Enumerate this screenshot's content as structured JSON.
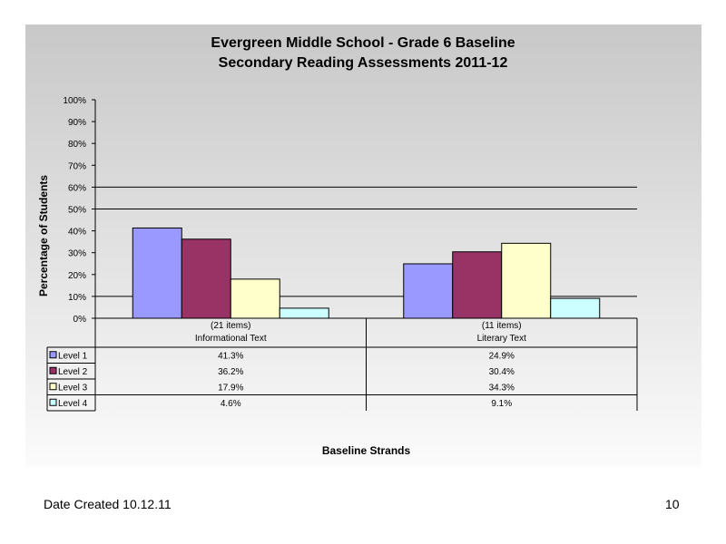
{
  "slide": {
    "date_created": "Date Created  10.12.11",
    "page_number": "10"
  },
  "chart_data": {
    "type": "bar",
    "title": "Evergreen Middle School - Grade 6 Baseline",
    "subtitle": "Secondary Reading Assessments 2011-12",
    "ylabel": "Percentage of Students",
    "xlabel": "Baseline Strands",
    "ylim": [
      0,
      100
    ],
    "yticks": [
      "0%",
      "10%",
      "20%",
      "30%",
      "40%",
      "50%",
      "60%",
      "70%",
      "80%",
      "90%",
      "100%"
    ],
    "gridlines_at": [
      10,
      50,
      60
    ],
    "categories": [
      {
        "line1": "(21 items)",
        "line2": "Informational Text"
      },
      {
        "line1": "(11 items)",
        "line2": "Literary Text"
      }
    ],
    "series": [
      {
        "name": "Level 1",
        "values": [
          41.3,
          24.9
        ],
        "labels": [
          "41.3%",
          "24.9%"
        ],
        "color": "#9999ff"
      },
      {
        "name": "Level 2",
        "values": [
          36.2,
          30.4
        ],
        "labels": [
          "36.2%",
          "30.4%"
        ],
        "color": "#993366"
      },
      {
        "name": "Level 3",
        "values": [
          17.9,
          34.3
        ],
        "labels": [
          "17.9%",
          "34.3%"
        ],
        "color": "#ffffcc"
      },
      {
        "name": "Level 4",
        "values": [
          4.6,
          9.1
        ],
        "labels": [
          "4.6%",
          "9.1%"
        ],
        "color": "#ccffff"
      }
    ]
  }
}
